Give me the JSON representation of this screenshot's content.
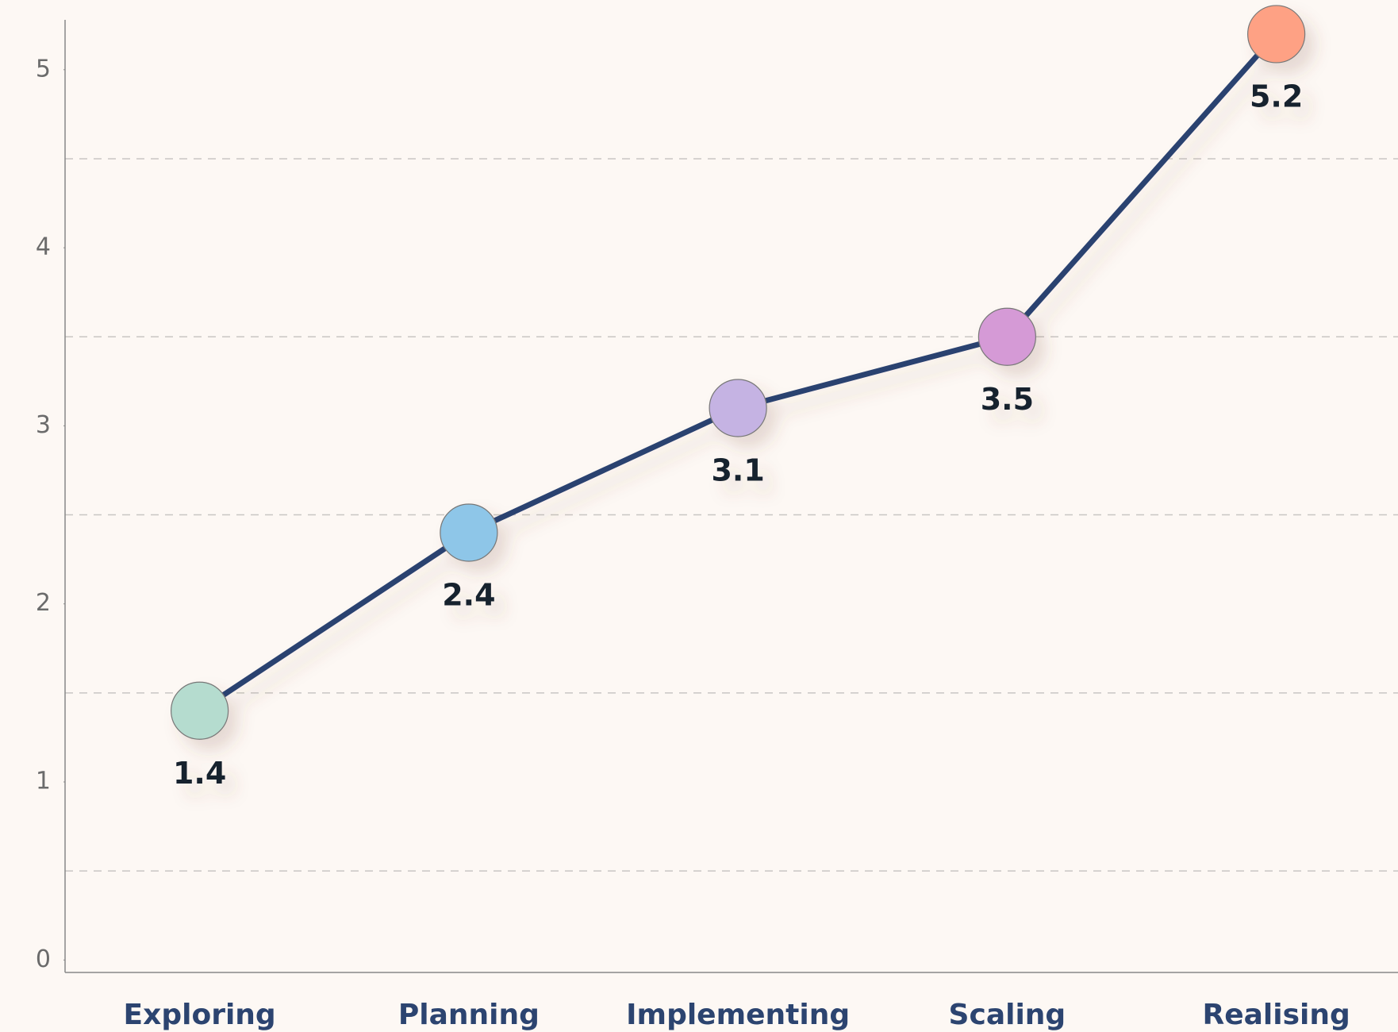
{
  "chart_data": {
    "type": "line",
    "categories": [
      "Exploring",
      "Planning",
      "Implementing",
      "Scaling",
      "Realising"
    ],
    "values": [
      1.4,
      2.4,
      3.1,
      3.5,
      5.2
    ],
    "line_color": "#2b4270",
    "point_colors": [
      "#b5dccf",
      "#8ec6e8",
      "#c5b3e3",
      "#d59ad6",
      "#fea184"
    ],
    "ylim": [
      -0.07,
      5.28
    ],
    "yticks": [
      0,
      1,
      2,
      3,
      4,
      5
    ],
    "grid_ticks": [
      0.5,
      1.5,
      2.5,
      3.5,
      4.5
    ],
    "grid": true
  }
}
